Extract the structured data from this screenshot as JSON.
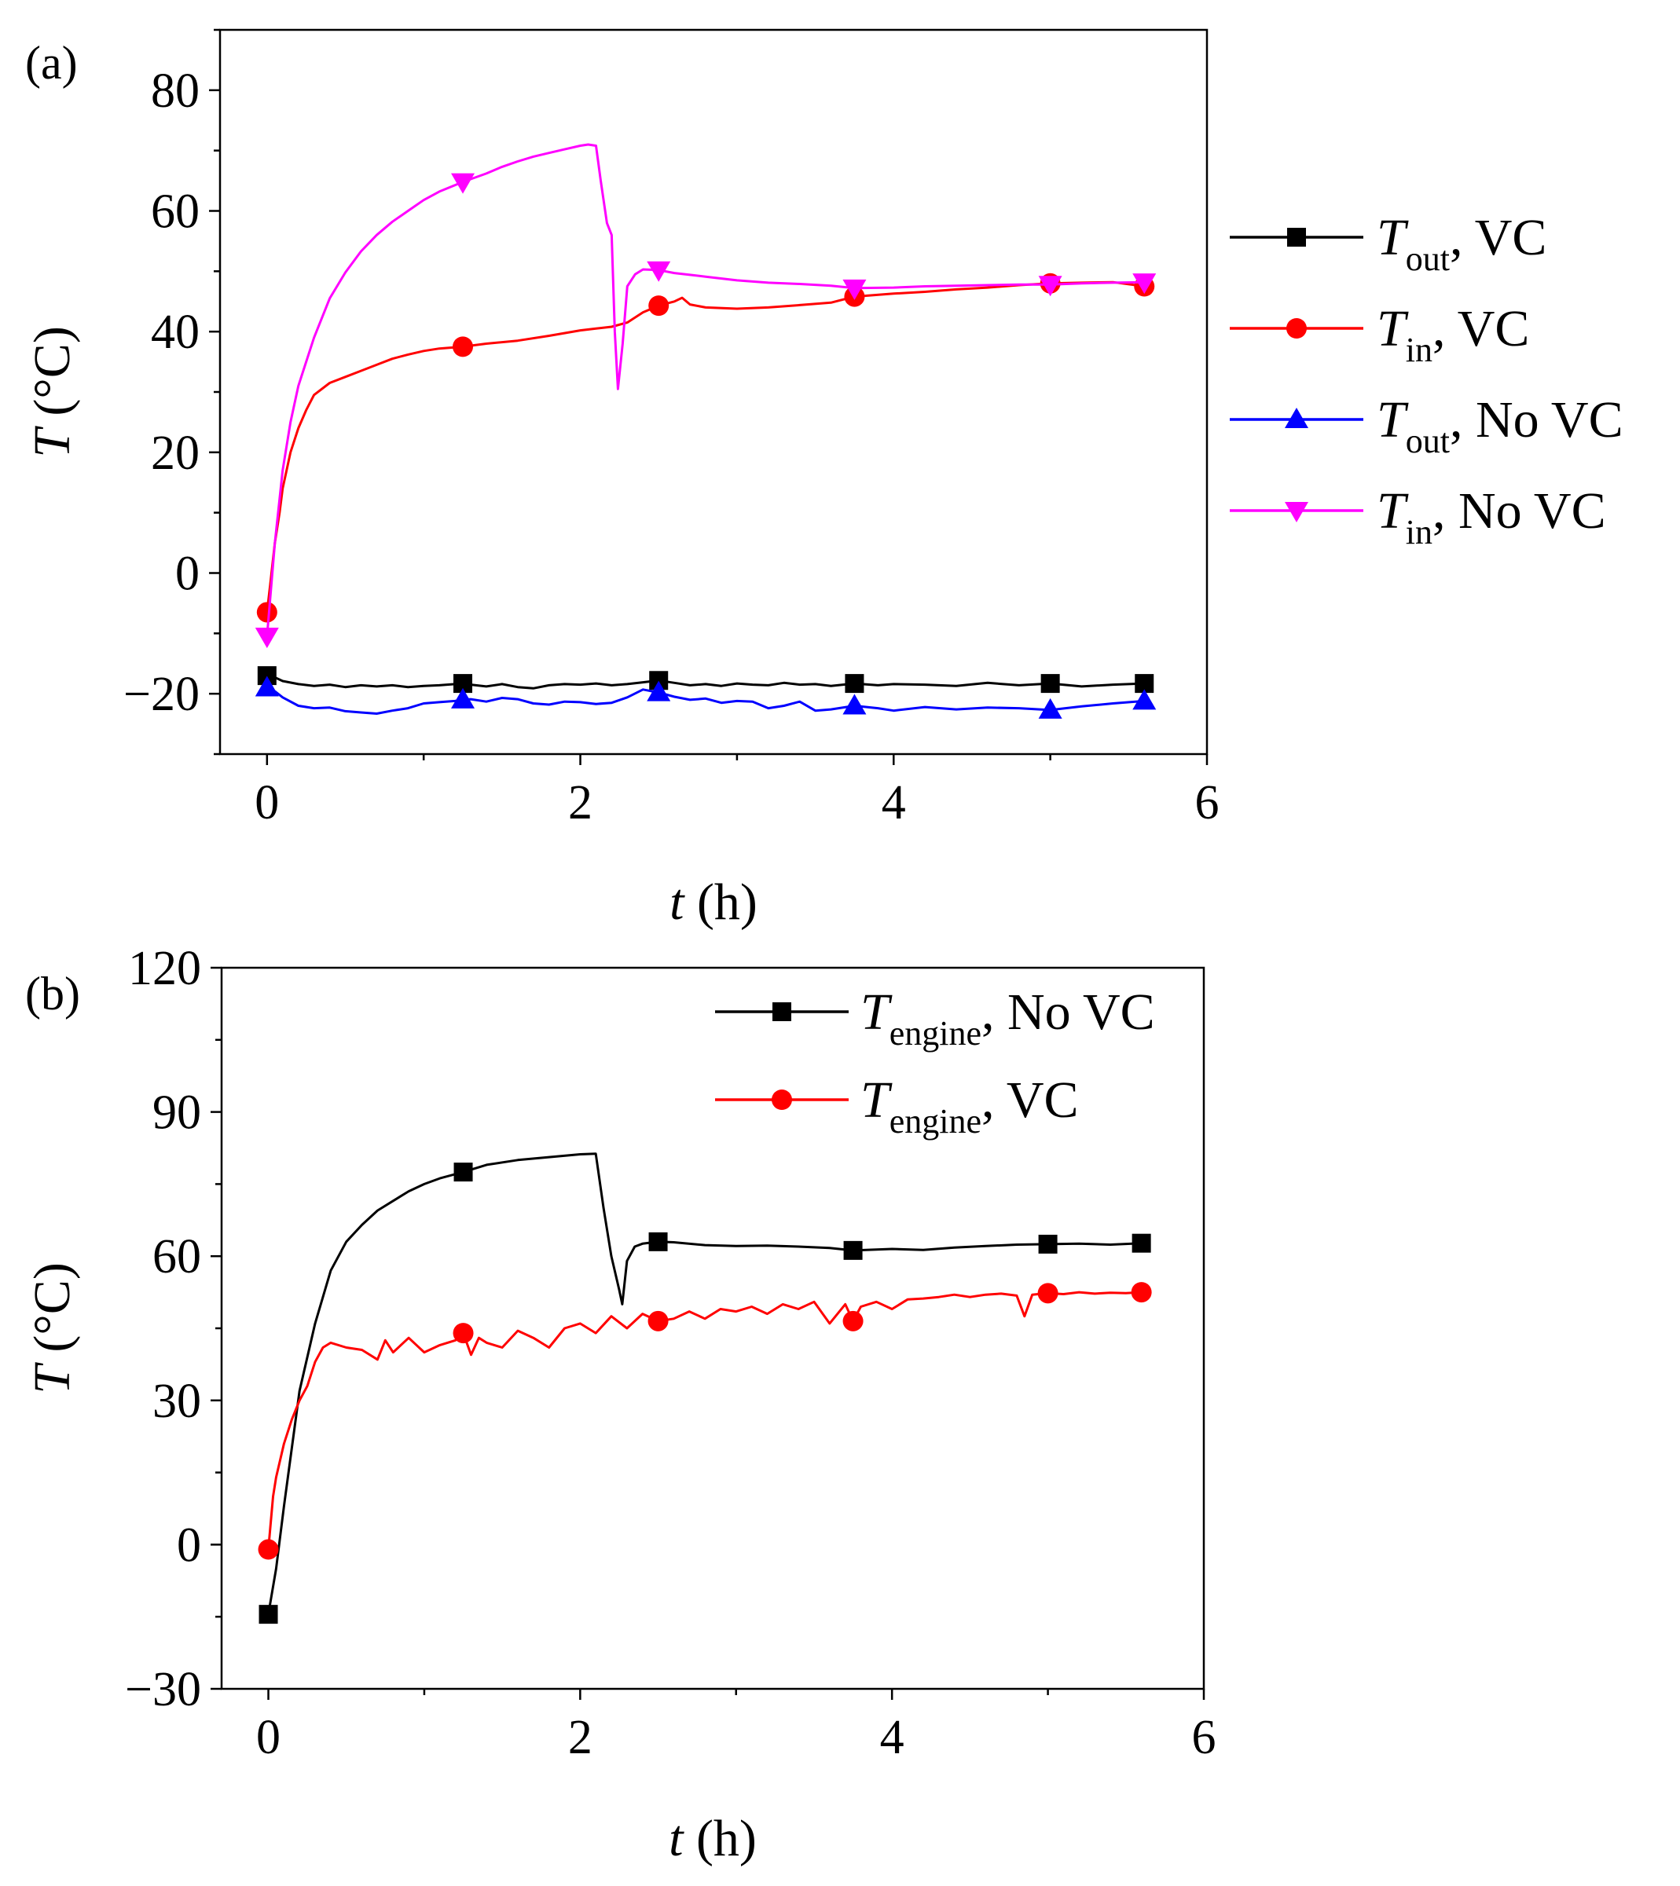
{
  "chart_data": [
    {
      "panel": "(a)",
      "type": "line",
      "xlabel": "t",
      "xlabel_unit": "(h)",
      "ylabel": "T",
      "ylabel_unit": "(°C)",
      "xlim": [
        -0.3,
        6
      ],
      "ylim": [
        -30,
        90
      ],
      "xticks": [
        0,
        2,
        4,
        6
      ],
      "yticks": [
        -20,
        0,
        20,
        40,
        60,
        80
      ],
      "xtick_labels": [
        "0",
        "2",
        "4",
        "6"
      ],
      "ytick_labels": [
        "−20",
        "0",
        "20",
        "40",
        "60",
        "80"
      ],
      "legend_position": "right",
      "series": [
        {
          "name": "T_out, VC",
          "label_main": "T",
          "label_sub": "out",
          "label_rest": ", VC",
          "color": "#000000",
          "marker": "square",
          "x": [
            0,
            0.05,
            0.1,
            0.2,
            0.3,
            0.4,
            0.5,
            0.6,
            0.7,
            0.8,
            0.9,
            1.0,
            1.1,
            1.2,
            1.25,
            1.3,
            1.4,
            1.5,
            1.6,
            1.7,
            1.8,
            1.9,
            2.0,
            2.1,
            2.2,
            2.3,
            2.4,
            2.5,
            2.6,
            2.7,
            2.8,
            2.9,
            3.0,
            3.1,
            3.2,
            3.3,
            3.4,
            3.5,
            3.6,
            3.75,
            3.9,
            4.0,
            4.2,
            4.4,
            4.6,
            4.8,
            5.0,
            5.2,
            5.4,
            5.6
          ],
          "y": [
            -17,
            -17.3,
            -17.9,
            -18.4,
            -18.7,
            -18.5,
            -18.9,
            -18.6,
            -18.8,
            -18.6,
            -18.9,
            -18.7,
            -18.6,
            -18.4,
            -18.3,
            -18.5,
            -18.8,
            -18.4,
            -18.9,
            -19.1,
            -18.6,
            -18.4,
            -18.5,
            -18.3,
            -18.6,
            -18.4,
            -18.1,
            -17.8,
            -18.2,
            -18.6,
            -18.4,
            -18.7,
            -18.3,
            -18.5,
            -18.6,
            -18.2,
            -18.5,
            -18.4,
            -18.7,
            -18.3,
            -18.6,
            -18.4,
            -18.5,
            -18.7,
            -18.2,
            -18.6,
            -18.3,
            -18.8,
            -18.5,
            -18.3
          ],
          "marker_x": [
            0,
            1.25,
            2.5,
            3.75,
            5.0,
            5.6
          ],
          "marker_y": [
            -17,
            -18.3,
            -17.8,
            -18.3,
            -18.3,
            -18.3
          ]
        },
        {
          "name": "T_in, VC",
          "label_main": "T",
          "label_sub": "in",
          "label_rest": ", VC",
          "color": "#ff0000",
          "marker": "circle",
          "x": [
            0,
            0.02,
            0.05,
            0.08,
            0.1,
            0.15,
            0.2,
            0.25,
            0.3,
            0.4,
            0.5,
            0.6,
            0.7,
            0.8,
            0.9,
            1.0,
            1.1,
            1.25,
            1.4,
            1.6,
            1.8,
            2.0,
            2.1,
            2.2,
            2.3,
            2.4,
            2.5,
            2.6,
            2.65,
            2.7,
            2.8,
            3.0,
            3.2,
            3.4,
            3.6,
            3.75,
            4.0,
            4.2,
            4.4,
            4.6,
            4.8,
            5.0,
            5.2,
            5.4,
            5.6
          ],
          "y": [
            -6.5,
            -2,
            5,
            10,
            14,
            20,
            24,
            27,
            29.5,
            31.5,
            32.5,
            33.5,
            34.5,
            35.5,
            36.2,
            36.8,
            37.2,
            37.5,
            38,
            38.5,
            39.3,
            40.2,
            40.5,
            40.8,
            41.5,
            43.2,
            44.3,
            45,
            45.6,
            44.5,
            44,
            43.8,
            44,
            44.4,
            44.8,
            45.8,
            46.3,
            46.6,
            47,
            47.3,
            47.7,
            48,
            48.1,
            48.2,
            47.5
          ],
          "marker_x": [
            0,
            1.25,
            2.5,
            3.75,
            5.0,
            5.6
          ],
          "marker_y": [
            -6.5,
            37.5,
            44.3,
            45.8,
            48,
            47.5
          ]
        },
        {
          "name": "T_out, No VC",
          "label_main": "T",
          "label_sub": "out",
          "label_rest": ", No VC",
          "color": "#0000ff",
          "marker": "triangle-up",
          "x": [
            0,
            0.05,
            0.1,
            0.2,
            0.3,
            0.4,
            0.5,
            0.6,
            0.7,
            0.8,
            0.9,
            1.0,
            1.1,
            1.2,
            1.25,
            1.3,
            1.4,
            1.5,
            1.6,
            1.7,
            1.8,
            1.9,
            2.0,
            2.1,
            2.2,
            2.3,
            2.4,
            2.5,
            2.6,
            2.7,
            2.8,
            2.9,
            3.0,
            3.1,
            3.2,
            3.3,
            3.4,
            3.5,
            3.6,
            3.75,
            3.9,
            4.0,
            4.2,
            4.4,
            4.6,
            4.8,
            5.0,
            5.2,
            5.4,
            5.6
          ],
          "y": [
            -19,
            -19.6,
            -20.6,
            -22,
            -22.4,
            -22.3,
            -22.9,
            -23.1,
            -23.3,
            -22.8,
            -22.4,
            -21.6,
            -21.4,
            -21.2,
            -21,
            -20.9,
            -21.3,
            -20.7,
            -20.9,
            -21.6,
            -21.8,
            -21.3,
            -21.4,
            -21.7,
            -21.5,
            -20.6,
            -19.3,
            -19.8,
            -20.5,
            -21,
            -20.8,
            -21.5,
            -21.2,
            -21.3,
            -22.4,
            -22,
            -21.3,
            -22.8,
            -22.6,
            -22,
            -22.4,
            -22.8,
            -22.2,
            -22.6,
            -22.3,
            -22.4,
            -22.7,
            -22.1,
            -21.6,
            -21.2
          ],
          "marker_x": [
            0,
            1.25,
            2.5,
            3.75,
            5.0,
            5.6
          ],
          "marker_y": [
            -19,
            -21,
            -19.8,
            -22,
            -22.7,
            -21.2
          ]
        },
        {
          "name": "T_in, No VC",
          "label_main": "T",
          "label_sub": "in",
          "label_rest": ", No VC",
          "color": "#ff00ff",
          "marker": "triangle-down",
          "x": [
            0,
            0.05,
            0.1,
            0.15,
            0.2,
            0.3,
            0.4,
            0.5,
            0.6,
            0.7,
            0.8,
            0.9,
            1.0,
            1.1,
            1.25,
            1.4,
            1.5,
            1.6,
            1.7,
            1.8,
            1.9,
            2.0,
            2.05,
            2.1,
            2.13,
            2.17,
            2.2,
            2.22,
            2.24,
            2.27,
            2.3,
            2.35,
            2.4,
            2.5,
            2.6,
            2.7,
            2.8,
            3.0,
            3.2,
            3.4,
            3.6,
            3.75,
            4.0,
            4.2,
            4.4,
            4.6,
            4.8,
            5.0,
            5.2,
            5.4,
            5.6
          ],
          "y": [
            -10.5,
            5,
            17,
            25,
            31,
            39,
            45.5,
            49.8,
            53.3,
            56,
            58.2,
            60,
            61.8,
            63.2,
            64.8,
            66.2,
            67.3,
            68.2,
            69,
            69.6,
            70.2,
            70.8,
            71,
            70.8,
            65,
            58,
            56,
            40,
            30.5,
            38,
            47.5,
            49.5,
            50.3,
            50.2,
            49.7,
            49.4,
            49.1,
            48.5,
            48.1,
            47.9,
            47.6,
            47.2,
            47.3,
            47.5,
            47.6,
            47.7,
            47.8,
            47.8,
            48,
            48.1,
            48.2
          ],
          "marker_x": [
            0,
            1.25,
            2.5,
            3.75,
            5.0,
            5.6
          ],
          "marker_y": [
            -10.5,
            64.8,
            50.2,
            47.2,
            47.8,
            48.2
          ]
        }
      ]
    },
    {
      "panel": "(b)",
      "type": "line",
      "xlabel": "t",
      "xlabel_unit": "(h)",
      "ylabel": "T",
      "ylabel_unit": "(°C)",
      "xlim": [
        -0.3,
        6
      ],
      "ylim": [
        -30,
        120
      ],
      "xticks": [
        0,
        2,
        4,
        6
      ],
      "yticks": [
        -30,
        0,
        30,
        60,
        90,
        120
      ],
      "xtick_labels": [
        "0",
        "2",
        "4",
        "6"
      ],
      "ytick_labels": [
        "−30",
        "0",
        "30",
        "60",
        "90",
        "120"
      ],
      "legend_position": "top-right",
      "series": [
        {
          "name": "T_engine, No VC",
          "label_main": "T",
          "label_sub": "engine",
          "label_rest": ", No VC",
          "color": "#000000",
          "marker": "square",
          "x": [
            0,
            0.05,
            0.1,
            0.15,
            0.2,
            0.3,
            0.4,
            0.5,
            0.6,
            0.7,
            0.8,
            0.9,
            1.0,
            1.1,
            1.25,
            1.4,
            1.6,
            1.8,
            2.0,
            2.1,
            2.15,
            2.2,
            2.25,
            2.27,
            2.3,
            2.35,
            2.4,
            2.5,
            2.6,
            2.8,
            3.0,
            3.2,
            3.4,
            3.6,
            3.75,
            4.0,
            4.2,
            4.4,
            4.6,
            4.8,
            5.0,
            5.2,
            5.4,
            5.6
          ],
          "y": [
            -14.5,
            -5,
            8,
            20,
            32,
            46,
            57,
            63,
            66.5,
            69.5,
            71.5,
            73.5,
            75,
            76.2,
            77.5,
            79,
            80,
            80.6,
            81.2,
            81.3,
            70,
            60,
            53,
            50,
            59,
            62,
            62.6,
            63,
            62.9,
            62.3,
            62.1,
            62.2,
            62,
            61.7,
            61.2,
            61.5,
            61.3,
            61.8,
            62.1,
            62.4,
            62.5,
            62.6,
            62.4,
            62.7
          ],
          "marker_x": [
            0,
            1.25,
            2.5,
            3.75,
            5.0,
            5.6
          ],
          "marker_y": [
            -14.5,
            77.5,
            63,
            61.2,
            62.5,
            62.7
          ]
        },
        {
          "name": "T_engine, VC",
          "label_main": "T",
          "label_sub": "engine",
          "label_rest": ", VC",
          "color": "#ff0000",
          "marker": "circle",
          "x": [
            0,
            0.03,
            0.05,
            0.1,
            0.15,
            0.2,
            0.25,
            0.3,
            0.35,
            0.4,
            0.5,
            0.6,
            0.7,
            0.75,
            0.8,
            0.9,
            1.0,
            1.1,
            1.2,
            1.25,
            1.3,
            1.35,
            1.4,
            1.5,
            1.6,
            1.7,
            1.8,
            1.9,
            2.0,
            2.1,
            2.2,
            2.3,
            2.4,
            2.5,
            2.6,
            2.7,
            2.8,
            2.9,
            3.0,
            3.1,
            3.2,
            3.3,
            3.4,
            3.5,
            3.6,
            3.7,
            3.75,
            3.8,
            3.9,
            4.0,
            4.1,
            4.2,
            4.3,
            4.4,
            4.5,
            4.6,
            4.7,
            4.8,
            4.85,
            4.9,
            5.0,
            5.1,
            5.2,
            5.3,
            5.4,
            5.5,
            5.6
          ],
          "y": [
            -1,
            10,
            14,
            21,
            26,
            30,
            33,
            38,
            41,
            42,
            41,
            40.5,
            38.5,
            42.5,
            40,
            43,
            40,
            41.5,
            42.5,
            44,
            39.5,
            43,
            42,
            41,
            44.5,
            43,
            41,
            45,
            46,
            44,
            47.5,
            45,
            48,
            46.5,
            47,
            48.5,
            47,
            49,
            48.5,
            49.5,
            48,
            50,
            49,
            50.5,
            46,
            50,
            46.5,
            49.5,
            50.5,
            49,
            51,
            51.2,
            51.5,
            52,
            51.5,
            52,
            52.2,
            51.8,
            47.5,
            52,
            52.3,
            52.1,
            52.5,
            52.2,
            52.4,
            52.3,
            52.5
          ],
          "marker_x": [
            0,
            1.25,
            2.5,
            3.75,
            5.0,
            5.6
          ],
          "marker_y": [
            -1,
            44,
            46.5,
            46.5,
            52.3,
            52.5
          ]
        }
      ]
    }
  ]
}
